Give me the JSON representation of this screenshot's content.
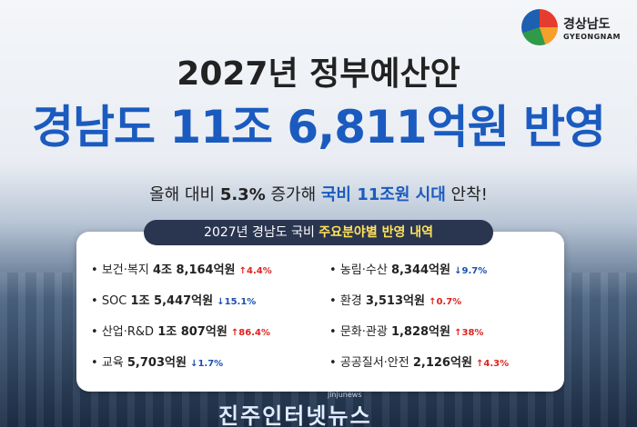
{
  "logo": {
    "name": "경상남도",
    "name_en": "GYEONGNAM"
  },
  "title": "2027년 정부예산안",
  "headline": "경남도 11조 6,811억원 반영",
  "subline": {
    "parts": [
      "올해 대비 ",
      "5.3%",
      " 증가해 ",
      "국비 11조원 시대",
      " 안착!"
    ]
  },
  "box": {
    "header": [
      "2027년 경남도 국비 ",
      "주요분야별 반영 내역"
    ],
    "left": [
      {
        "name": "보건·복지",
        "amount": "4조 8,164억원",
        "change": "↑4.4%"
      },
      {
        "name": "SOC",
        "amount": "1조 5,447억원",
        "change": "↓15.1%"
      },
      {
        "name": "산업·R&D",
        "amount": "1조 807억원",
        "change": "↑86.4%"
      },
      {
        "name": "교육",
        "amount": "5,703억원",
        "change": "↓1.7%"
      }
    ],
    "right": [
      {
        "name": "농림·수산",
        "amount": "8,344억원",
        "change": "↓9.7%"
      },
      {
        "name": "환경",
        "amount": "3,513억원",
        "change": "↑0.7%"
      },
      {
        "name": "문화·관광",
        "amount": "1,828억원",
        "change": "↑38%"
      },
      {
        "name": "공공질서·안전",
        "amount": "2,126억원",
        "change": "↑4.3%"
      }
    ]
  },
  "watermark": {
    "name": "진주인터넷뉴스",
    "url": "jinjunews"
  }
}
